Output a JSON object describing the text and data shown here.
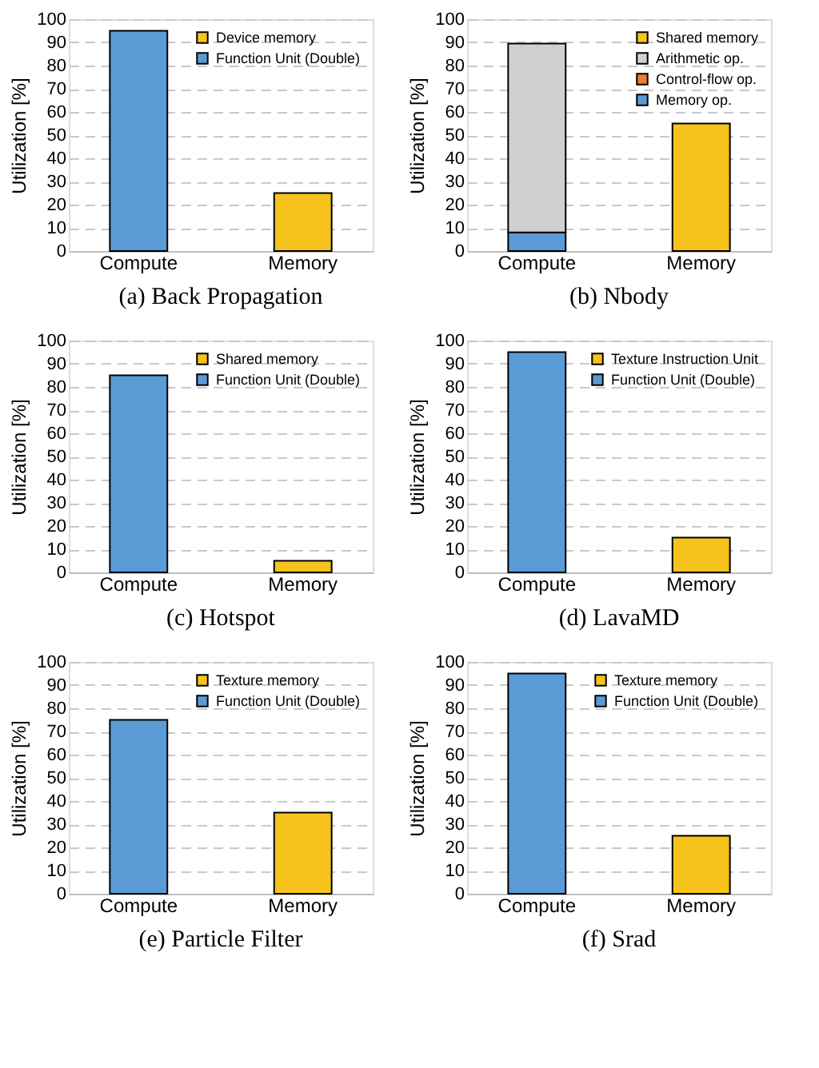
{
  "chart_data": [
    {
      "type": "bar",
      "stacked": true,
      "title": "(a) Back Propagation",
      "ylabel": "Utilization [%]",
      "categories": [
        "Compute",
        "Memory"
      ],
      "ylim": [
        0,
        100
      ],
      "yticks": [
        0,
        10,
        20,
        30,
        40,
        50,
        60,
        70,
        80,
        90,
        100
      ],
      "grid": "y",
      "legend": "top right",
      "series": [
        {
          "name": "Function Unit (Double)",
          "color": "#5b9bd5",
          "values": [
            95,
            null
          ]
        },
        {
          "name": "Device memory",
          "color": "#f5c31c",
          "values": [
            null,
            25
          ]
        }
      ]
    },
    {
      "type": "bar",
      "stacked": true,
      "title": "(b) Nbody",
      "ylabel": "Utilization [%]",
      "categories": [
        "Compute",
        "Memory"
      ],
      "ylim": [
        0,
        100
      ],
      "yticks": [
        0,
        10,
        20,
        30,
        40,
        50,
        60,
        70,
        80,
        90,
        100
      ],
      "grid": "y",
      "legend": "top right",
      "series": [
        {
          "name": "Memory op.",
          "color": "#5b9bd5",
          "values": [
            8,
            null
          ]
        },
        {
          "name": "Control-flow op.",
          "color": "#ed7d31",
          "values": [
            null,
            null
          ]
        },
        {
          "name": "Arithmetic op.",
          "color": "#d0d0d0",
          "values": [
            81.5,
            null
          ]
        },
        {
          "name": "Shared memory",
          "color": "#f5c31c",
          "values": [
            null,
            55
          ]
        }
      ]
    },
    {
      "type": "bar",
      "stacked": true,
      "title": "(c) Hotspot",
      "ylabel": "Utilization [%]",
      "categories": [
        "Compute",
        "Memory"
      ],
      "ylim": [
        0,
        100
      ],
      "yticks": [
        0,
        10,
        20,
        30,
        40,
        50,
        60,
        70,
        80,
        90,
        100
      ],
      "grid": "y",
      "legend": "top right",
      "series": [
        {
          "name": "Function Unit (Double)",
          "color": "#5b9bd5",
          "values": [
            85,
            null
          ]
        },
        {
          "name": "Shared memory",
          "color": "#f5c31c",
          "values": [
            null,
            5
          ]
        }
      ]
    },
    {
      "type": "bar",
      "stacked": true,
      "title": "(d) LavaMD",
      "ylabel": "Utilization [%]",
      "categories": [
        "Compute",
        "Memory"
      ],
      "ylim": [
        0,
        100
      ],
      "yticks": [
        0,
        10,
        20,
        30,
        40,
        50,
        60,
        70,
        80,
        90,
        100
      ],
      "grid": "y",
      "legend": "top right",
      "series": [
        {
          "name": "Function Unit (Double)",
          "color": "#5b9bd5",
          "values": [
            95,
            null
          ]
        },
        {
          "name": "Texture Instruction Unit",
          "color": "#f5c31c",
          "values": [
            null,
            15
          ]
        }
      ]
    },
    {
      "type": "bar",
      "stacked": true,
      "title": "(e) Particle Filter",
      "ylabel": "Utilization [%]",
      "categories": [
        "Compute",
        "Memory"
      ],
      "ylim": [
        0,
        100
      ],
      "yticks": [
        0,
        10,
        20,
        30,
        40,
        50,
        60,
        70,
        80,
        90,
        100
      ],
      "grid": "y",
      "legend": "top right",
      "series": [
        {
          "name": "Function Unit (Double)",
          "color": "#5b9bd5",
          "values": [
            75,
            null
          ]
        },
        {
          "name": "Texture memory",
          "color": "#f5c31c",
          "values": [
            null,
            35
          ]
        }
      ]
    },
    {
      "type": "bar",
      "stacked": true,
      "title": "(f) Srad",
      "ylabel": "Utilization [%]",
      "categories": [
        "Compute",
        "Memory"
      ],
      "ylim": [
        0,
        100
      ],
      "yticks": [
        0,
        10,
        20,
        30,
        40,
        50,
        60,
        70,
        80,
        90,
        100
      ],
      "grid": "y",
      "legend": "top right",
      "series": [
        {
          "name": "Function Unit (Double)",
          "color": "#5b9bd5",
          "values": [
            95,
            null
          ]
        },
        {
          "name": "Texture memory",
          "color": "#f5c31c",
          "values": [
            null,
            25
          ]
        }
      ]
    }
  ]
}
